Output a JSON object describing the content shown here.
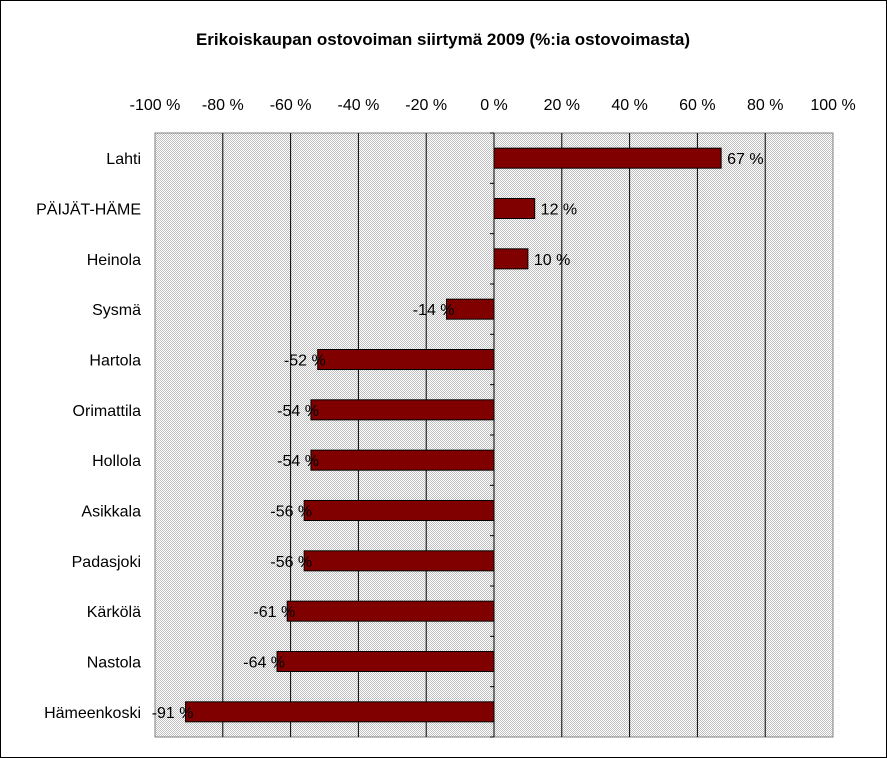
{
  "chart_data": {
    "type": "bar",
    "orientation": "horizontal",
    "title": "Erikoiskaupan ostovoiman siirtymä 2009 (%:ia ostovoimasta)",
    "xlabel": "",
    "ylabel": "",
    "xlim": [
      -100,
      100
    ],
    "x_tick_values": [
      -100,
      -80,
      -60,
      -40,
      -20,
      0,
      20,
      40,
      60,
      80,
      100
    ],
    "x_tick_labels": [
      "-100 %",
      "-80 %",
      "-60 %",
      "-40 %",
      "-20 %",
      "0 %",
      "20 %",
      "40 %",
      "60 %",
      "80 %",
      "100 %"
    ],
    "x_axis_position": "top",
    "grid": true,
    "legend": "none",
    "categories": [
      "Lahti",
      "PÄIJÄT-HÄME",
      "Heinola",
      "Sysmä",
      "Hartola",
      "Orimattila",
      "Hollola",
      "Asikkala",
      "Padasjoki",
      "Kärkölä",
      "Nastola",
      "Hämeenkoski"
    ],
    "values": [
      67,
      12,
      10,
      -14,
      -52,
      -54,
      -54,
      -56,
      -56,
      -61,
      -64,
      -91
    ],
    "data_labels": [
      "67 %",
      "12 %",
      "10 %",
      "-14 %",
      "-52 %",
      "-54 %",
      "-54 %",
      "-56 %",
      "-56 %",
      "-61 %",
      "-64 %",
      "-91 %"
    ],
    "colors": {
      "bar": "#800000",
      "plot_background": "#d9d9d9",
      "gridline": "#000000"
    }
  }
}
